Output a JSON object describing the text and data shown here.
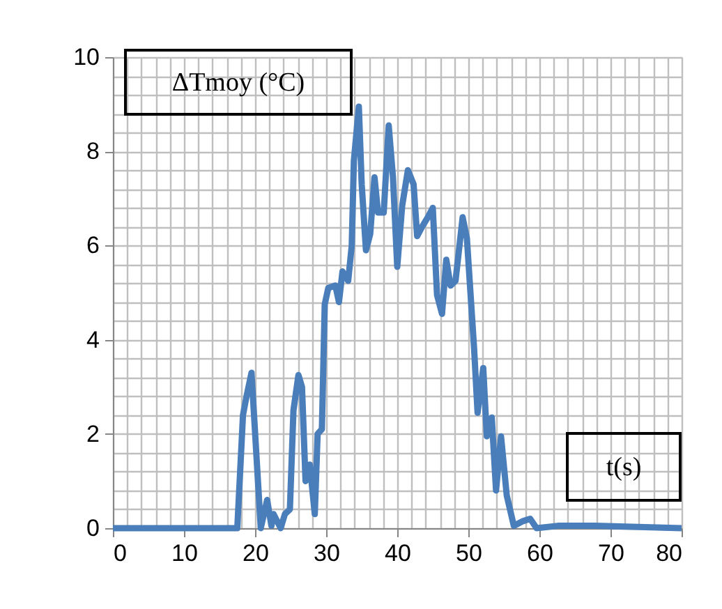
{
  "chart_data": {
    "type": "line",
    "xlabel": "t(s)",
    "ylabel": "ΔTmoy (°C)",
    "x": [
      0,
      17.5,
      18.3,
      18.8,
      19.5,
      20.8,
      21.7,
      22.3,
      22.6,
      23.6,
      24.2,
      24.9,
      25.4,
      26.1,
      26.6,
      27.1,
      27.7,
      28.4,
      28.8,
      29.4,
      29.8,
      30.3,
      31.3,
      31.8,
      32.3,
      33.1,
      33.6,
      33.9,
      34.6,
      35.0,
      35.6,
      36.2,
      36.8,
      37.3,
      38.1,
      38.8,
      39.4,
      40.0,
      40.7,
      41.5,
      42.3,
      42.8,
      43.5,
      44.3,
      45.0,
      45.6,
      46.3,
      46.9,
      47.5,
      48.2,
      49.2,
      49.8,
      50.8,
      51.3,
      52.1,
      52.6,
      53.3,
      53.9,
      54.6,
      55.4,
      56.4,
      57.7,
      58.7,
      59.6,
      62.6,
      67.8,
      80
    ],
    "series": [
      {
        "color": "#4a7ebb",
        "values": [
          0,
          0,
          2.4,
          2.8,
          3.3,
          0,
          0.6,
          0.05,
          0.3,
          0,
          0.3,
          0.4,
          2.5,
          3.25,
          3.0,
          1.0,
          1.35,
          0.3,
          2.0,
          2.1,
          4.75,
          5.1,
          5.15,
          4.8,
          5.45,
          5.25,
          6.0,
          7.8,
          8.95,
          7.3,
          5.9,
          6.25,
          7.45,
          6.7,
          6.7,
          8.55,
          7.45,
          5.55,
          6.85,
          7.6,
          7.3,
          6.2,
          6.4,
          6.6,
          6.8,
          4.95,
          4.55,
          5.7,
          5.15,
          5.25,
          6.6,
          6.15,
          3.85,
          2.45,
          3.4,
          1.95,
          2.35,
          0.8,
          1.95,
          0.7,
          0.05,
          0.15,
          0.2,
          0,
          0.05,
          0.05,
          0
        ]
      }
    ],
    "xlim": [
      0,
      80
    ],
    "ylim": [
      0,
      10
    ],
    "xticks": [
      0,
      {
        "value": 2,
        "label": null
      },
      {
        "value": 4,
        "label": null
      },
      {
        "value": 6,
        "label": null
      },
      {
        "value": 8,
        "label": null
      },
      10,
      {
        "value": 12,
        "label": null
      },
      {
        "value": 14,
        "label": null
      },
      {
        "value": 16,
        "label": null
      },
      {
        "value": 18,
        "label": null
      },
      20,
      {
        "value": 22,
        "label": null
      },
      {
        "value": 24,
        "label": null
      },
      {
        "value": 26,
        "label": null
      },
      {
        "value": 28,
        "label": null
      },
      30,
      {
        "value": 32,
        "label": null
      },
      {
        "value": 34,
        "label": null
      },
      {
        "value": 36,
        "label": null
      },
      {
        "value": 38,
        "label": null
      },
      40,
      {
        "value": 42,
        "label": null
      },
      {
        "value": 44,
        "label": null
      },
      {
        "value": 46,
        "label": null
      },
      {
        "value": 48,
        "label": null
      },
      50,
      {
        "value": 52,
        "label": null
      },
      {
        "value": 54,
        "label": null
      },
      {
        "value": 56,
        "label": null
      },
      {
        "value": 58,
        "label": null
      },
      60,
      {
        "value": 62,
        "label": null
      },
      {
        "value": 64,
        "label": null
      },
      {
        "value": 66,
        "label": null
      },
      {
        "value": 68,
        "label": null
      },
      70,
      {
        "value": 72,
        "label": null
      },
      {
        "value": 74,
        "label": null
      },
      {
        "value": 76,
        "label": null
      },
      {
        "value": 78,
        "label": null
      },
      80
    ],
    "yticks": [
      0,
      {
        "value": 0.4,
        "label": null
      },
      {
        "value": 0.8,
        "label": null
      },
      {
        "value": 1.2,
        "label": null
      },
      {
        "value": 1.6,
        "label": null
      },
      2,
      {
        "value": 2.4,
        "label": null
      },
      {
        "value": 2.8,
        "label": null
      },
      {
        "value": 3.2,
        "label": null
      },
      {
        "value": 3.6,
        "label": null
      },
      4,
      {
        "value": 4.4,
        "label": null
      },
      {
        "value": 4.8,
        "label": null
      },
      {
        "value": 5.2,
        "label": null
      },
      {
        "value": 5.6,
        "label": null
      },
      6,
      {
        "value": 6.4,
        "label": null
      },
      {
        "value": 6.8,
        "label": null
      },
      {
        "value": 7.2,
        "label": null
      },
      {
        "value": 7.6,
        "label": null
      },
      8,
      {
        "value": 8.4,
        "label": null
      },
      {
        "value": 8.8,
        "label": null
      },
      {
        "value": 9.2,
        "label": null
      },
      {
        "value": 9.6,
        "label": null
      },
      10
    ],
    "grid": true,
    "marker": "none",
    "line_style": "solid"
  }
}
